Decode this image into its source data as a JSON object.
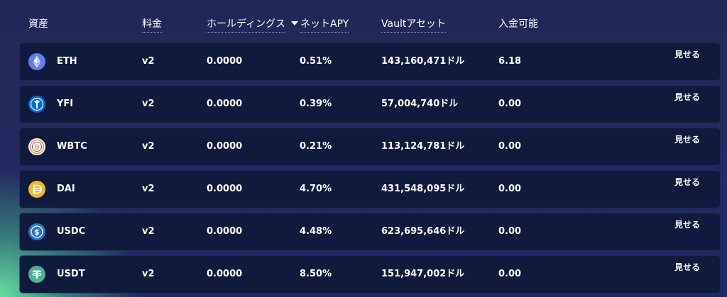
{
  "columns": {
    "asset": "資産",
    "fee": "料金",
    "holdings": "ホールディングス",
    "net_apy": "ネットAPY",
    "vault_assets": "Vaultアセット",
    "available": "入金可能"
  },
  "rows": [
    {
      "asset": "ETH",
      "icon": "eth-icon",
      "fee": "v2",
      "holdings": "0.0000",
      "apy": "0.51%",
      "vault": "143,160,471ドル",
      "available": "6.18",
      "action": "見せる"
    },
    {
      "asset": "YFI",
      "icon": "yfi-icon",
      "fee": "v2",
      "holdings": "0.0000",
      "apy": "0.39%",
      "vault": "57,004,740ドル",
      "available": "0.00",
      "action": "見せる"
    },
    {
      "asset": "WBTC",
      "icon": "wbtc-icon",
      "fee": "v2",
      "holdings": "0.0000",
      "apy": "0.21%",
      "vault": "113,124,781ドル",
      "available": "0.00",
      "action": "見せる"
    },
    {
      "asset": "DAI",
      "icon": "dai-icon",
      "fee": "v2",
      "holdings": "0.0000",
      "apy": "4.70%",
      "vault": "431,548,095ドル",
      "available": "0.00",
      "action": "見せる"
    },
    {
      "asset": "USDC",
      "icon": "usdc-icon",
      "fee": "v2",
      "holdings": "0.0000",
      "apy": "4.48%",
      "vault": "623,695,646ドル",
      "available": "0.00",
      "action": "見せる"
    },
    {
      "asset": "USDT",
      "icon": "usdt-icon",
      "fee": "v2",
      "holdings": "0.0000",
      "apy": "8.50%",
      "vault": "151,947,002ドル",
      "available": "0.00",
      "action": "見せる"
    }
  ],
  "colors": {
    "background": "#222a5f",
    "row_background": "#101a3c",
    "accent_green": "#6ce8a5",
    "eth": "#627eea",
    "yfi": "#006ae3",
    "dai": "#f4b731",
    "usdc": "#2775ca",
    "usdt": "#50af95",
    "wbtc": "#f09242"
  }
}
